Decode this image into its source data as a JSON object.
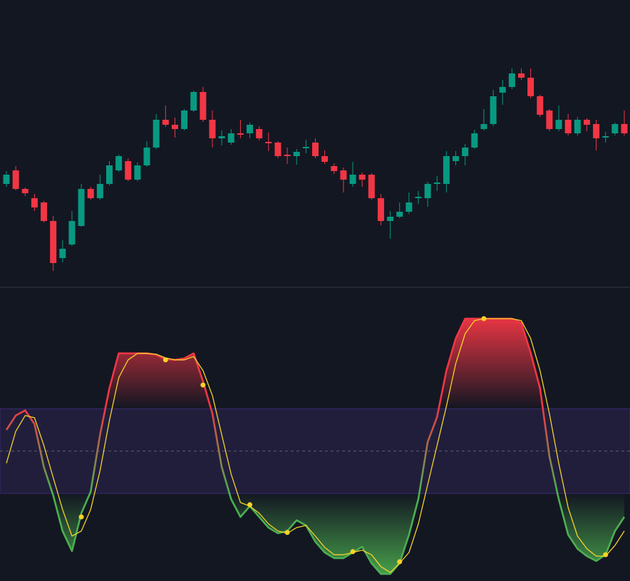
{
  "chart_data": [
    {
      "type": "candlestick",
      "categories": [
        null,
        null,
        null,
        null,
        null,
        null,
        null,
        null,
        null,
        null,
        null,
        null,
        null,
        null,
        null,
        null,
        null,
        null,
        null,
        null,
        null,
        null,
        null,
        null,
        null,
        null,
        null,
        null,
        null,
        null,
        null,
        null,
        null,
        null,
        null,
        null,
        null,
        null,
        null,
        null,
        null,
        null,
        null,
        null,
        null,
        null,
        null,
        null,
        null,
        null,
        null,
        null,
        null,
        null,
        null,
        null,
        null,
        null,
        null,
        null,
        null,
        null,
        null,
        null,
        null,
        null,
        null
      ],
      "open": [
        142,
        161,
        135,
        122,
        116,
        90,
        38,
        57,
        83,
        135,
        122,
        142,
        161,
        174,
        148,
        168,
        193,
        232,
        225,
        219,
        245,
        271,
        232,
        206,
        200,
        213,
        213,
        219,
        201,
        200,
        183,
        181,
        192,
        200,
        181,
        167,
        161,
        142,
        155,
        155,
        122,
        90,
        96,
        103,
        122,
        122,
        142,
        142,
        174,
        181,
        193,
        219,
        226,
        270,
        278,
        297,
        291,
        265,
        245,
        219,
        232,
        213,
        232,
        226,
        207,
        213,
        226
      ],
      "high": [
        160,
        167,
        137,
        128,
        118,
        97,
        63,
        104,
        142,
        138,
        155,
        174,
        183,
        178,
        172,
        202,
        240,
        252,
        235,
        247,
        273,
        278,
        245,
        217,
        219,
        232,
        228,
        223,
        214,
        202,
        193,
        191,
        204,
        206,
        189,
        171,
        165,
        173,
        158,
        157,
        128,
        104,
        116,
        130,
        132,
        145,
        153,
        188,
        188,
        198,
        218,
        247,
        274,
        288,
        304,
        304,
        304,
        267,
        247,
        252,
        240,
        236,
        234,
        232,
        215,
        228,
        245
      ],
      "low": [
        138,
        133,
        125,
        104,
        88,
        20,
        32,
        55,
        82,
        120,
        120,
        140,
        159,
        146,
        146,
        166,
        191,
        222,
        207,
        217,
        243,
        229,
        193,
        196,
        197,
        206,
        206,
        203,
        188,
        178,
        170,
        169,
        185,
        178,
        170,
        156,
        130,
        138,
        138,
        120,
        84,
        65,
        94,
        100,
        114,
        110,
        132,
        130,
        168,
        168,
        191,
        217,
        223,
        253,
        275,
        288,
        262,
        236,
        216,
        216,
        210,
        210,
        216,
        189,
        200,
        210,
        210
      ],
      "close": [
        155,
        135,
        129,
        109,
        90,
        31,
        51,
        90,
        135,
        122,
        142,
        168,
        181,
        148,
        168,
        193,
        232,
        225,
        219,
        245,
        271,
        232,
        206,
        209,
        213,
        211,
        225,
        206,
        199,
        181,
        181,
        187,
        194,
        181,
        173,
        160,
        148,
        155,
        148,
        122,
        90,
        96,
        103,
        116,
        124,
        142,
        144,
        181,
        181,
        193,
        213,
        226,
        265,
        278,
        297,
        291,
        265,
        239,
        219,
        232,
        213,
        232,
        225,
        206,
        209,
        226,
        213
      ],
      "up_color": "#089981",
      "down_color": "#f23645",
      "ylim": [
        0,
        400
      ]
    },
    {
      "type": "line",
      "categories": [
        null,
        null,
        null,
        null,
        null,
        null,
        null,
        null,
        null,
        null,
        null,
        null,
        null,
        null,
        null,
        null,
        null,
        null,
        null,
        null,
        null,
        null,
        null,
        null,
        null,
        null,
        null,
        null,
        null,
        null,
        null,
        null,
        null,
        null,
        null,
        null,
        null,
        null,
        null,
        null,
        null,
        null,
        null,
        null,
        null,
        null,
        null,
        null,
        null,
        null,
        null,
        null,
        null,
        null,
        null,
        null,
        null,
        null,
        null,
        null,
        null,
        null,
        null,
        null,
        null,
        null,
        null
      ],
      "series": [
        {
          "color": "#f23645",
          "color_low": "#4caf50",
          "values": [
            57.5,
            62.6,
            64.4,
            59.6,
            44.4,
            34.3,
            21.7,
            14.6,
            28.0,
            35.6,
            55.8,
            72.2,
            84.6,
            84.6,
            84.6,
            84.6,
            84.1,
            82.5,
            82.3,
            82.8,
            84.6,
            74.7,
            63.3,
            44.4,
            33.0,
            26.7,
            30.5,
            26.7,
            22.9,
            20.9,
            21.7,
            25.5,
            23.7,
            17.9,
            14.1,
            12.1,
            12.1,
            14.1,
            16.1,
            10.3,
            6.5,
            6.5,
            10.3,
            20.4,
            33.0,
            53.2,
            62.1,
            78.5,
            89.9,
            96.9,
            96.9,
            96.9,
            96.9,
            96.9,
            96.9,
            95.4,
            84.8,
            72.2,
            48.2,
            33.0,
            20.4,
            15.4,
            12.8,
            11.1,
            13.3,
            21.7,
            26.7
          ]
        },
        {
          "color": "#f5d328",
          "values": [
            45.7,
            57.0,
            62.6,
            61.8,
            52.0,
            40.6,
            29.3,
            19.9,
            21.7,
            29.3,
            43.1,
            60.8,
            76.0,
            82.3,
            84.6,
            84.6,
            84.3,
            83.0,
            82.3,
            82.3,
            83.5,
            78.5,
            69.7,
            55.8,
            41.9,
            31.8,
            30.5,
            28.0,
            24.2,
            21.7,
            20.9,
            22.9,
            23.7,
            19.9,
            15.9,
            13.3,
            13.3,
            14.1,
            14.9,
            13.3,
            9.1,
            7.0,
            10.3,
            14.1,
            24.2,
            38.1,
            52.0,
            65.9,
            81.0,
            91.6,
            96.2,
            96.9,
            96.9,
            96.9,
            96.9,
            96.2,
            89.9,
            78.5,
            63.3,
            45.7,
            30.0,
            19.9,
            15.4,
            12.8,
            12.8,
            16.6,
            21.7
          ]
        }
      ],
      "markers": {
        "color": "#f5d328",
        "x": [
          8,
          17,
          21,
          26,
          30,
          37,
          42,
          51,
          64
        ],
        "values": [
          26.7,
          82.3,
          73.4,
          31.0,
          21.2,
          14.4,
          10.8,
          96.9,
          13.3
        ]
      },
      "bands": [
        35,
        65
      ],
      "band_color": "#3b2a6e",
      "midline": 50,
      "ylim": [
        4,
        108
      ]
    }
  ]
}
